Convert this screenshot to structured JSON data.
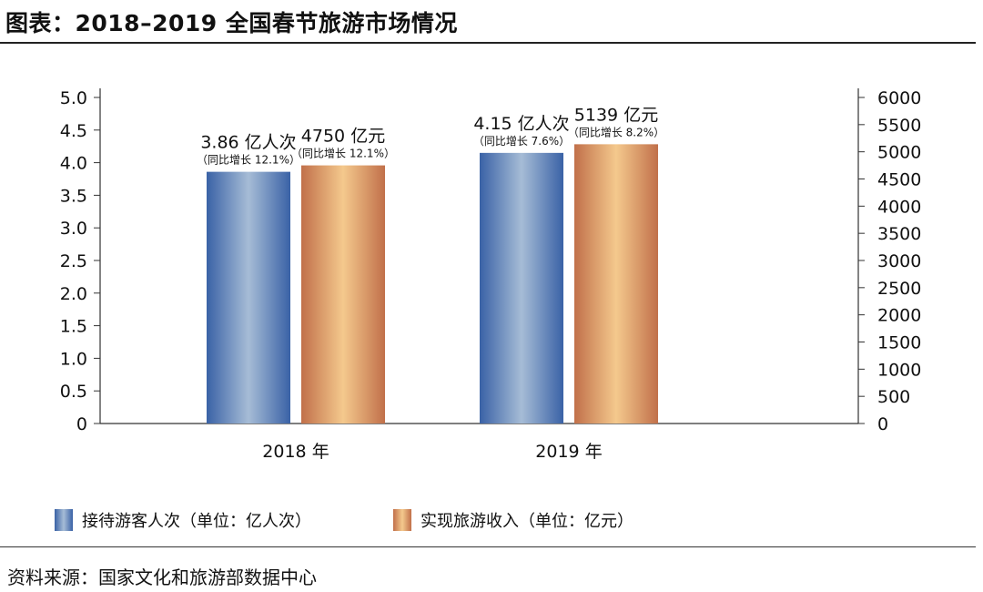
{
  "header": {
    "title": "图表：2018–2019 全国春节旅游市场情况"
  },
  "source": {
    "text": "资料来源：国家文化和旅游部数据中心"
  },
  "colors": {
    "blue_dark": "#3a62a6",
    "blue_light": "#a6bcd6",
    "orange_dark": "#c1704a",
    "orange_light": "#f4c98d",
    "axis": "#333333"
  },
  "legend": [
    {
      "label": "接待游客人次（单位：亿人次）"
    },
    {
      "label": "实现旅游收入（单位：亿元）"
    }
  ],
  "chart_data": {
    "type": "bar",
    "categories": [
      "2018 年",
      "2019 年"
    ],
    "series": [
      {
        "name": "接待游客人次（单位：亿人次）",
        "axis": "left",
        "values": [
          3.86,
          4.15
        ],
        "value_labels": [
          "3.86 亿人次",
          "4.15 亿人次"
        ],
        "notes": [
          "（同比增长 12.1%）",
          "（同比增长 7.6%）"
        ]
      },
      {
        "name": "实现旅游收入（单位：亿元）",
        "axis": "right",
        "values": [
          4750,
          5139
        ],
        "value_labels": [
          "4750 亿元",
          "5139 亿元"
        ],
        "notes": [
          "（同比增长 12.1%）",
          "（同比增长 8.2%）"
        ]
      }
    ],
    "y_left": {
      "min": 0,
      "max": 5.0,
      "ticks": [
        "0",
        "0.5",
        "1.0",
        "1.5",
        "2.0",
        "2.5",
        "3.0",
        "3.5",
        "4.0",
        "4.5",
        "5.0"
      ]
    },
    "y_right": {
      "min": 0,
      "max": 6000,
      "ticks": [
        "0",
        "500",
        "1000",
        "1500",
        "2000",
        "2500",
        "3000",
        "3500",
        "4000",
        "4500",
        "5000",
        "5500",
        "6000"
      ]
    },
    "grid": false,
    "legend_position": "bottom-left"
  }
}
